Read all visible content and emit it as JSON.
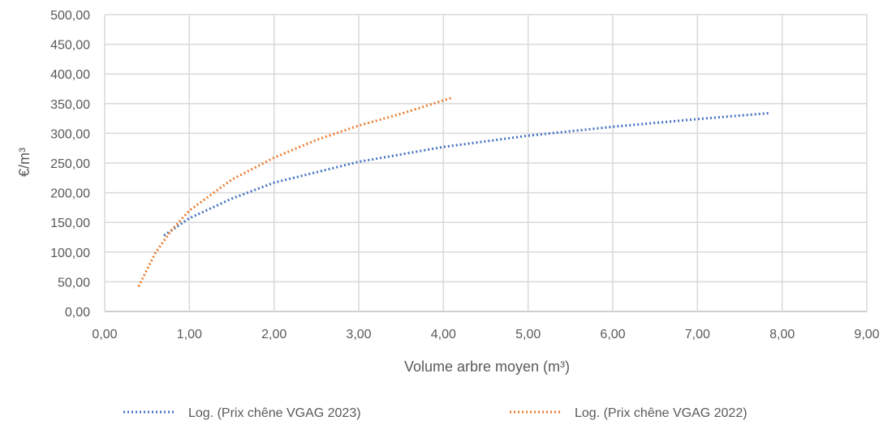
{
  "chart_data": {
    "type": "line",
    "xlabel": "Volume arbre moyen (m³)",
    "ylabel": "€/m³",
    "xlim": [
      0,
      9
    ],
    "ylim": [
      0,
      500
    ],
    "x_ticks": [
      "0,00",
      "1,00",
      "2,00",
      "3,00",
      "4,00",
      "5,00",
      "6,00",
      "7,00",
      "8,00",
      "9,00"
    ],
    "y_ticks": [
      "0,00",
      "50,00",
      "100,00",
      "150,00",
      "200,00",
      "250,00",
      "300,00",
      "350,00",
      "400,00",
      "450,00",
      "500,00"
    ],
    "grid": true,
    "legend_position": "bottom",
    "series": [
      {
        "name": "Log. (Prix chêne VGAG 2023)",
        "color": "#4472C4",
        "style": "dotted",
        "x": [
          0.7,
          1.0,
          1.5,
          2.0,
          3.0,
          4.0,
          5.0,
          6.0,
          7.0,
          7.85
        ],
        "y": [
          128,
          157,
          190,
          217,
          252,
          277,
          296,
          311,
          324,
          334
        ]
      },
      {
        "name": "Log. (Prix chêne VGAG 2022)",
        "color": "#ED7D31",
        "style": "dotted",
        "x": [
          0.4,
          0.6,
          0.8,
          1.0,
          1.5,
          2.0,
          2.5,
          3.0,
          3.5,
          4.1
        ],
        "y": [
          42,
          99,
          139,
          170,
          222,
          259,
          289,
          313,
          333,
          360
        ]
      }
    ]
  }
}
